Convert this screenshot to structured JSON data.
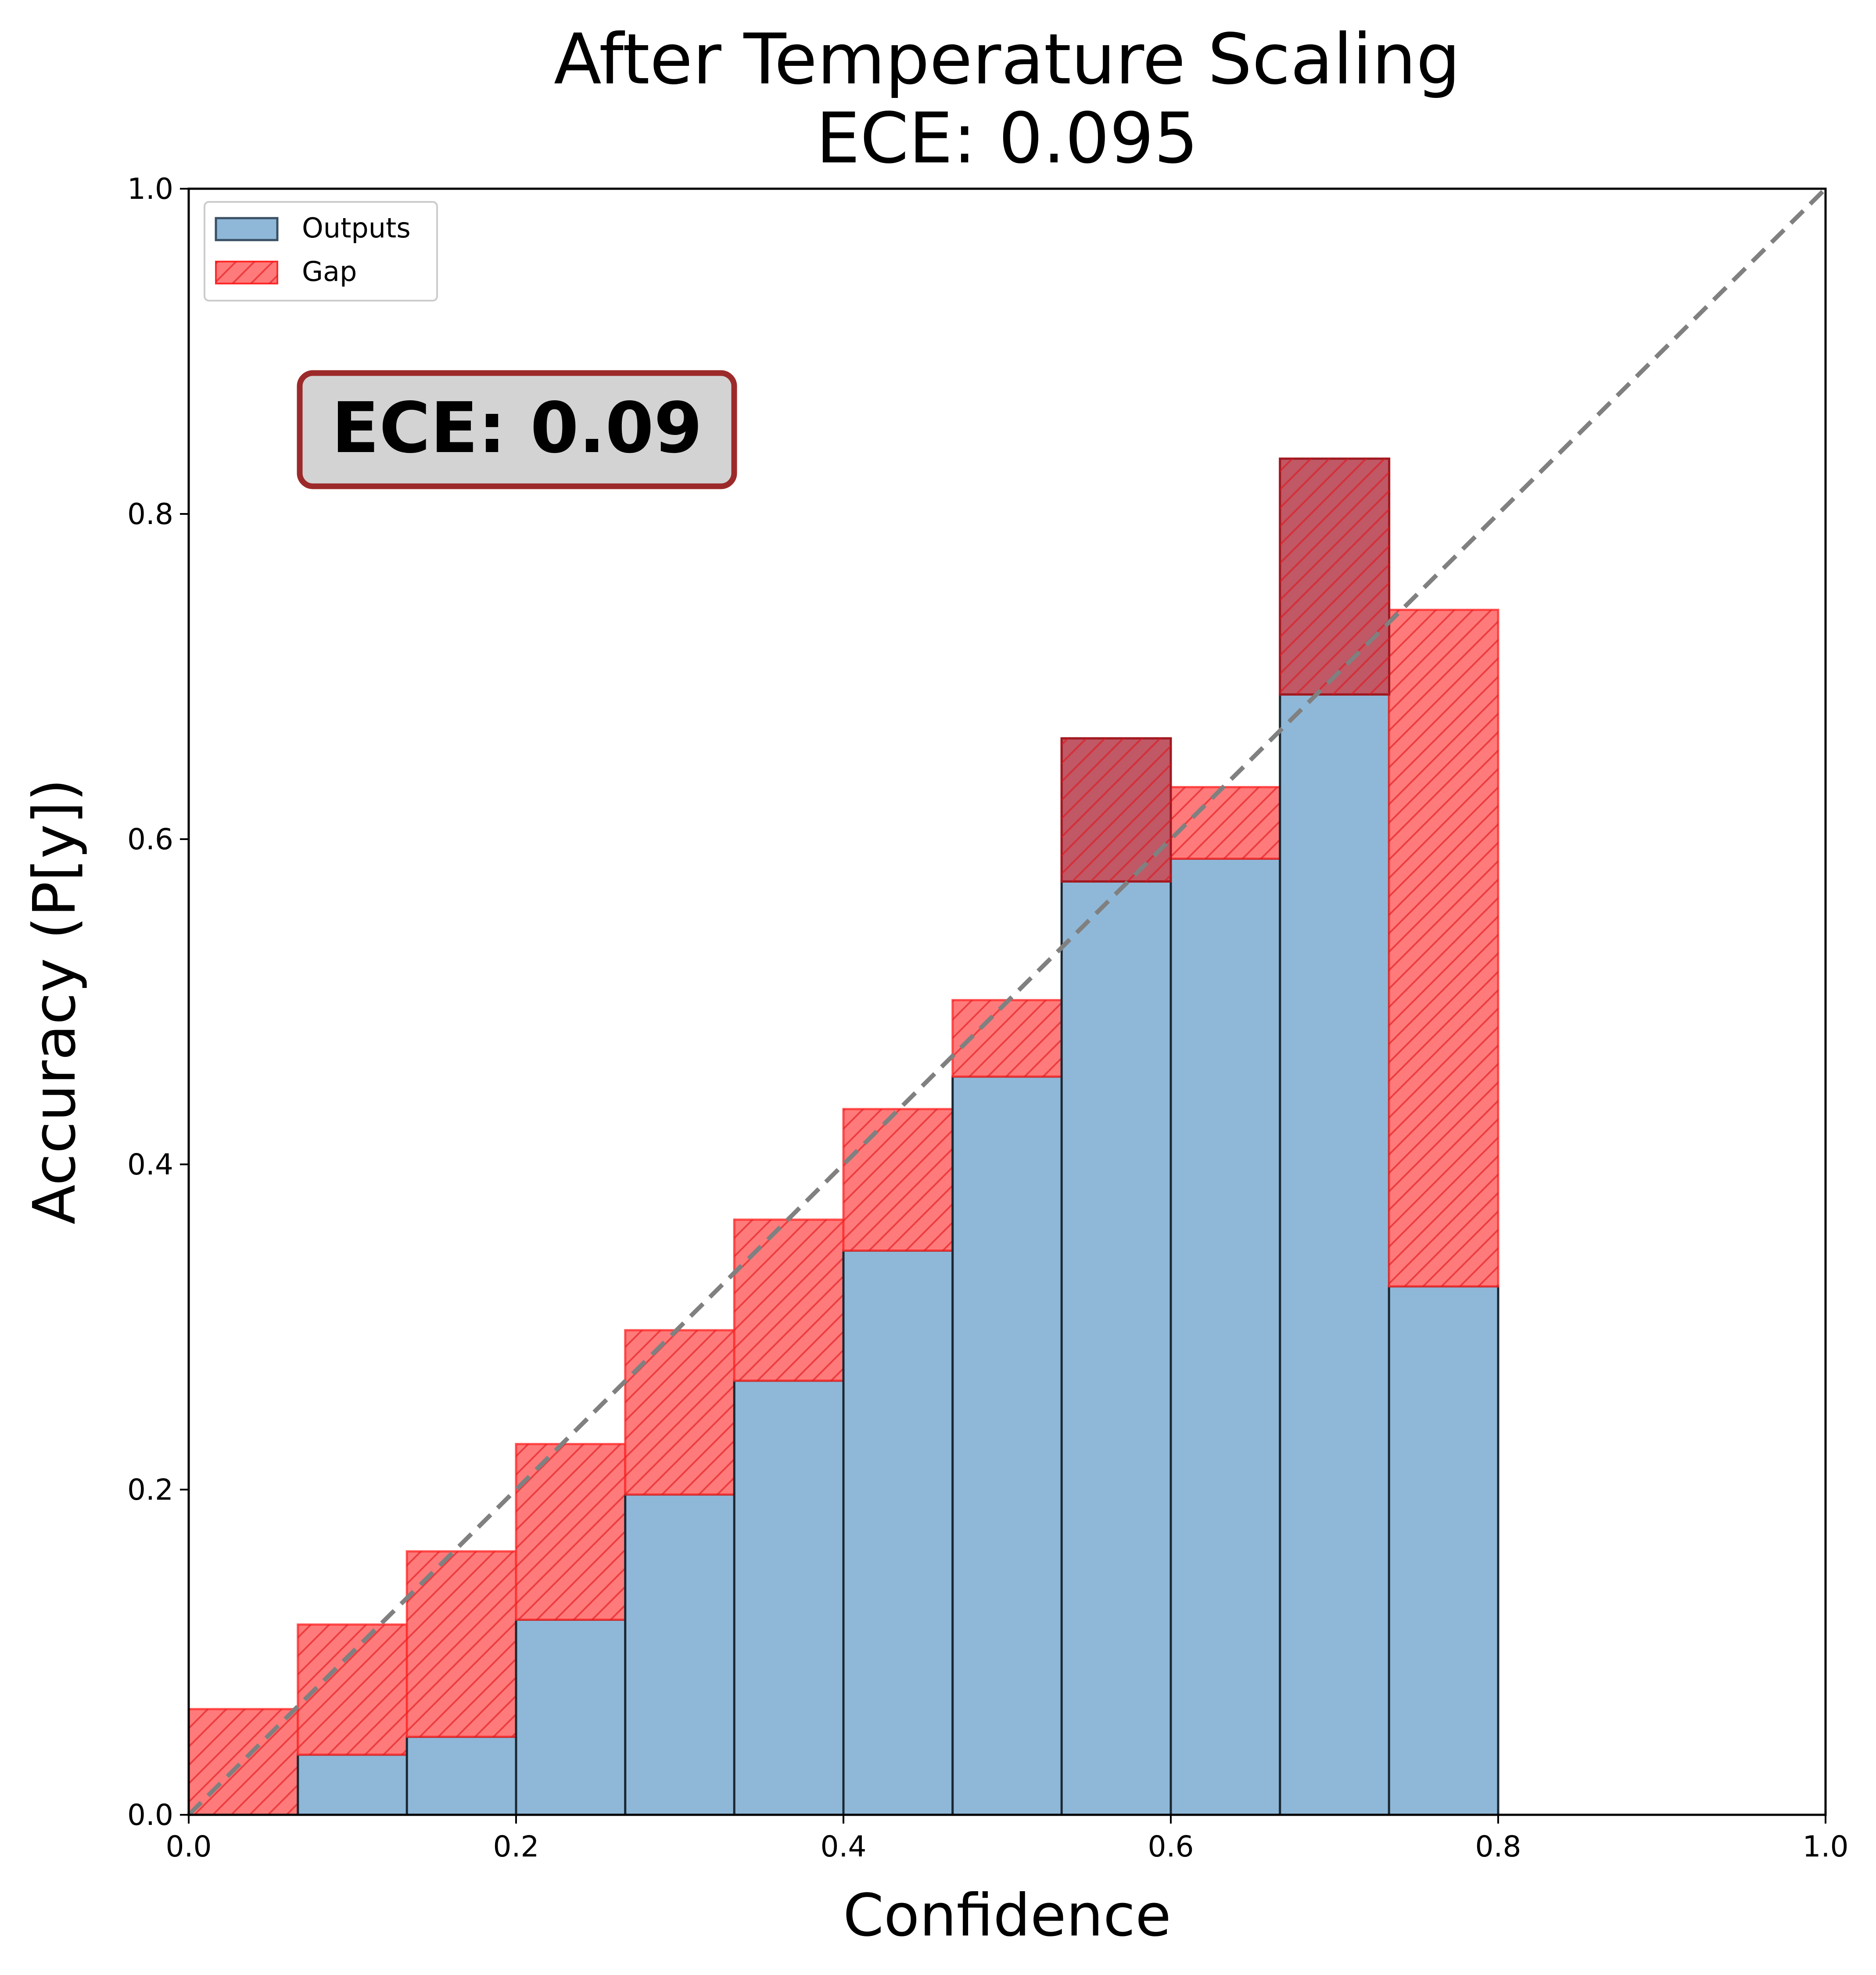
{
  "chart_data": {
    "type": "bar",
    "title": "After Temperature Scaling",
    "subtitle": "ECE: 0.095",
    "xlabel": "Confidence",
    "ylabel": "Accuracy (P[y])",
    "xlim": [
      0.0,
      1.0
    ],
    "ylim": [
      0.0,
      1.0
    ],
    "x_ticks": [
      "0.0",
      "0.2",
      "0.4",
      "0.6",
      "0.8",
      "1.0"
    ],
    "y_ticks": [
      "0.0",
      "0.2",
      "0.4",
      "0.6",
      "0.8",
      "1.0"
    ],
    "bin_width": 0.0667,
    "bin_starts": [
      0.0,
      0.0667,
      0.1333,
      0.2,
      0.2667,
      0.3333,
      0.4,
      0.4667,
      0.5333,
      0.6,
      0.6667,
      0.7333
    ],
    "series": [
      {
        "name": "Outputs",
        "values": [
          0.0,
          0.037,
          0.048,
          0.12,
          0.197,
          0.267,
          0.347,
          0.454,
          0.574,
          0.588,
          0.689,
          0.325
        ]
      },
      {
        "name": "Gap",
        "bottoms": [
          0.0,
          0.037,
          0.048,
          0.12,
          0.197,
          0.267,
          0.347,
          0.454,
          0.574,
          0.588,
          0.689,
          0.325
        ],
        "tops": [
          0.065,
          0.117,
          0.162,
          0.228,
          0.298,
          0.366,
          0.434,
          0.501,
          0.662,
          0.632,
          0.834,
          0.741
        ]
      }
    ],
    "reference_line": "diagonal dashed y=x",
    "legend": {
      "position": "top-left",
      "entries": [
        "Outputs",
        "Gap"
      ]
    },
    "annotation": "ECE: 0.09",
    "grid": false,
    "colors": {
      "outputs_fill": "#8fb8d8",
      "outputs_edge": "#1a2733",
      "gap_fill": "#ff7b7b",
      "gap_edge": "#ff2a2a",
      "overlap_fill": "#c05866",
      "diagonal": "#808080",
      "annotation_box_fill": "#d3d3d3",
      "annotation_box_edge": "#9c2a2a"
    }
  }
}
